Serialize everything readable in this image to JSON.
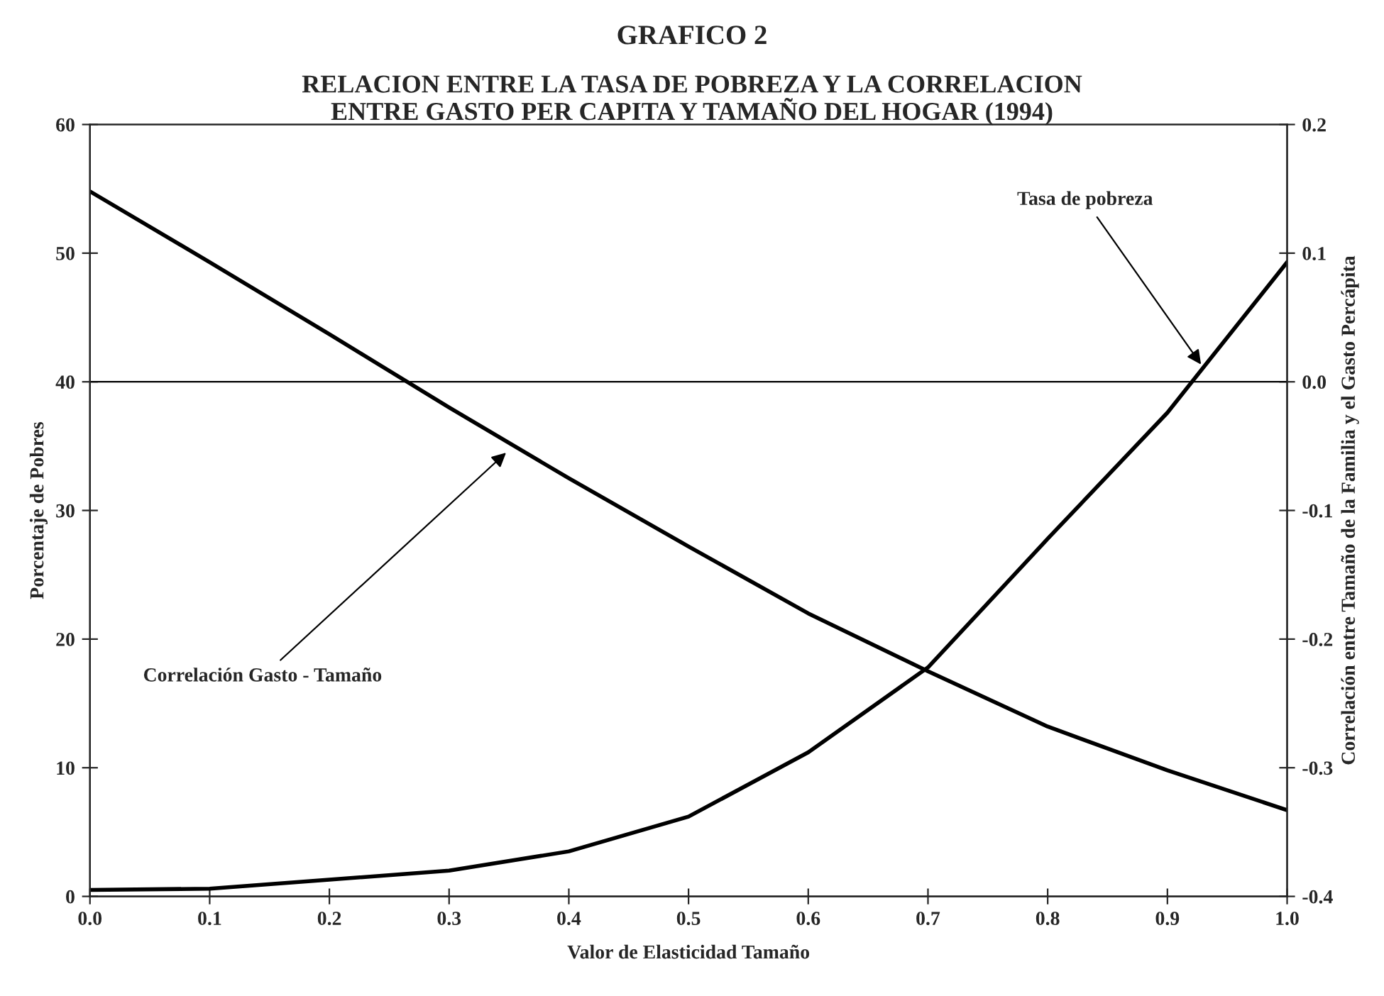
{
  "chart_data": {
    "type": "line",
    "title": "GRAFICO 2",
    "subtitle": "RELACION ENTRE LA TASA DE POBREZA Y LA CORRELACION\nENTRE GASTO PER CAPITA Y TAMAÑO DEL HOGAR (1994)",
    "xlabel": "Valor de Elasticidad Tamaño",
    "ylabel": "Porcentaje de Pobres",
    "y2label": "Correlación entre Tamaño de la Familia y el Gasto Percápita",
    "x": [
      0.0,
      0.1,
      0.2,
      0.3,
      0.4,
      0.5,
      0.6,
      0.7,
      0.8,
      0.9,
      1.0
    ],
    "series": [
      {
        "color": "#000000",
        "values": [
          0.5,
          0.6,
          1.3,
          2.0,
          3.5,
          6.2,
          11.2,
          17.8,
          27.8,
          37.6,
          49.3
        ]
      },
      {
        "color": "#000000",
        "axis": "y2",
        "values": [
          0.148,
          0.093,
          0.037,
          -0.02,
          -0.075,
          -0.128,
          -0.18,
          -0.225,
          -0.268,
          -0.302,
          -0.333
        ]
      }
    ],
    "xlim": [
      0.0,
      1.0
    ],
    "xticks": [
      {
        "value": 0,
        "label": "0.0"
      },
      0.1,
      0.2,
      0.3,
      0.4,
      0.5,
      0.6,
      0.7,
      0.8,
      0.9,
      {
        "value": 1,
        "label": "1.0"
      }
    ],
    "ylim": [
      0,
      60
    ],
    "yticks": [
      0,
      10,
      20,
      30,
      40,
      50,
      60
    ],
    "y2lim": [
      -0.4,
      0.2
    ],
    "y2ticks": [
      -0.4,
      -0.3,
      -0.2,
      -0.1,
      {
        "value": 0,
        "label": "0.0"
      },
      0.1,
      0.2
    ],
    "ref_lines": [
      {
        "axis": "y2",
        "value": 0,
        "color": "#000000"
      }
    ],
    "annotations": [
      {
        "text": "Tasa de pobreza",
        "x": 0.93,
        "y": 41.1
      },
      {
        "text": "Correlación Gasto - Tamaño",
        "x": 0.35,
        "y": 34.7
      }
    ],
    "grid": false,
    "legend": false,
    "marker": "none",
    "line_style": "solid"
  }
}
